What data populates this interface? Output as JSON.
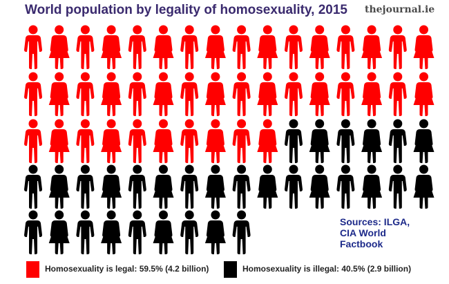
{
  "title": "World population by legality of homosexuality, 2015",
  "brand": "thejournal.ie",
  "sources": [
    "Sources: ILGA,",
    "CIA World",
    "Factbook"
  ],
  "colors": {
    "legal": "#ff0000",
    "illegal": "#000000"
  },
  "chart_data": {
    "type": "pictograph",
    "title": "World population by legality of homosexuality, 2015",
    "unit": "person icon",
    "total_icons": 73,
    "series": [
      {
        "name": "Homosexuality is legal: 59.5% (4.2 billion)",
        "percent": 59.5,
        "population_billion": 4.2,
        "icons": 42,
        "color": "#ff0000"
      },
      {
        "name": "Homosexuality is illegal: 40.5% (2.9 billion)",
        "percent": 40.5,
        "population_billion": 2.9,
        "icons": 31,
        "color": "#000000"
      }
    ]
  },
  "legend": [
    {
      "label": "Homosexuality is legal: 59.5% (4.2 billion)",
      "color": "#ff0000"
    },
    {
      "label": "Homosexuality is illegal: 40.5% (2.9 billion)",
      "color": "#000000"
    }
  ]
}
